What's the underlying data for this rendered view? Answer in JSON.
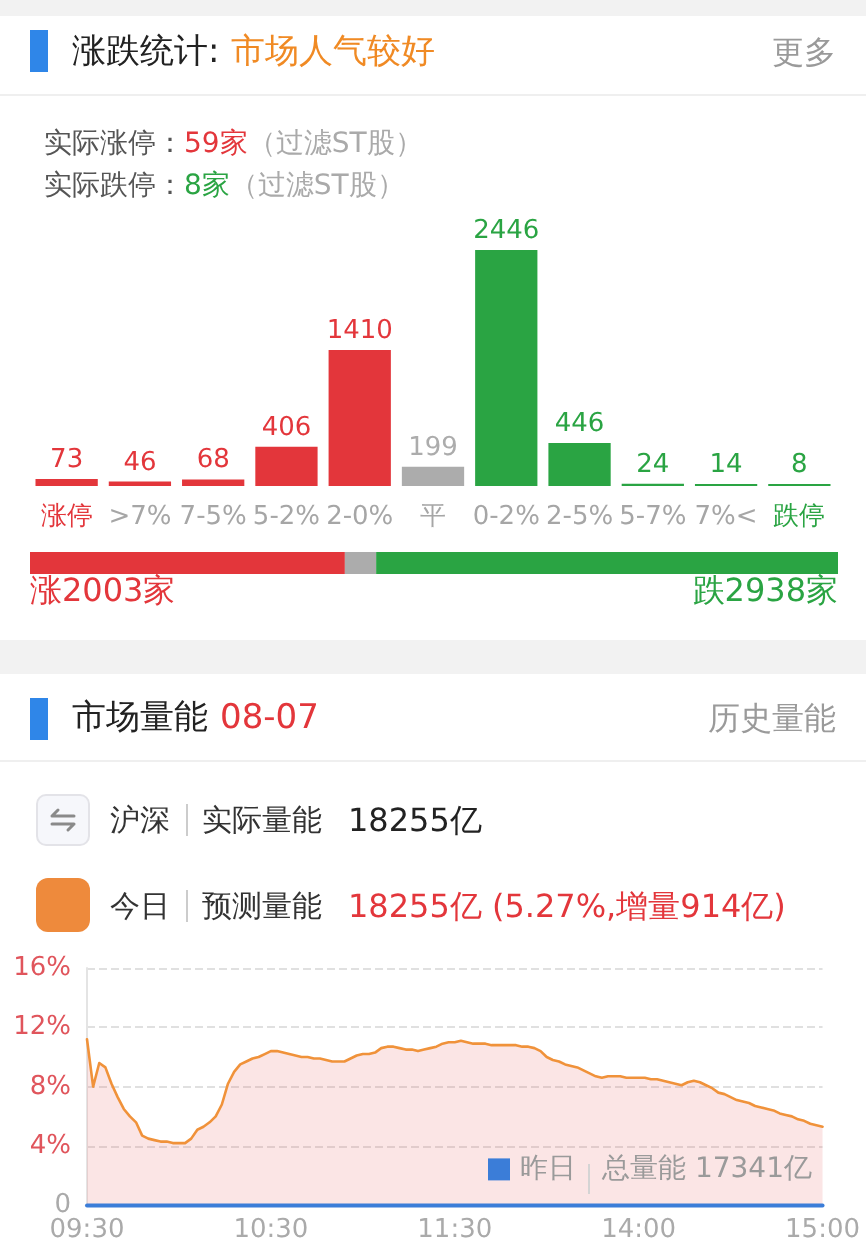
{
  "chart_data": [
    {
      "type": "bar",
      "title": "涨跌统计:",
      "subtitle": "市场人气较好",
      "annotations": [
        "更多",
        "实际涨停：",
        "59家",
        "（过滤ST股）",
        "实际跌停：",
        "8家",
        "（过滤ST股）"
      ],
      "categories": [
        "涨停",
        ">7%",
        "7-5%",
        "5-2%",
        "2-0%",
        "平",
        "0-2%",
        "2-5%",
        "5-7%",
        "7%<",
        "跌停"
      ],
      "values": [
        73,
        46,
        68,
        406,
        1410,
        199,
        2446,
        446,
        24,
        14,
        8
      ],
      "colors": [
        "#e3363b",
        "#e3363b",
        "#e3363b",
        "#e3363b",
        "#e3363b",
        "#acacac",
        "#2aa443",
        "#2aa443",
        "#2aa443",
        "#2aa443",
        "#2aa443"
      ],
      "data_labels": true
    },
    {
      "type": "bar",
      "orientation": "horizontal",
      "stacked": true,
      "categories": [
        null
      ],
      "series": [
        {
          "color": "#e3363b",
          "values": [
            2003
          ],
          "value_labels": [
            "涨2003家"
          ]
        },
        {
          "color": "#acacac",
          "values": [
            199
          ]
        },
        {
          "color": "#2aa443",
          "values": [
            2938
          ],
          "value_labels": [
            "跌2938家"
          ]
        }
      ]
    },
    {
      "type": "other",
      "title": "市场量能",
      "subtitle": "08-07",
      "annotations": [
        "历史量能",
        "沪深",
        "实际量能",
        "18255亿",
        "今日",
        "预测量能",
        "18255亿 (5.27%,增量914亿)"
      ]
    },
    {
      "type": "area",
      "categories": [
        "09:30",
        null,
        null,
        null,
        null,
        null,
        null,
        null,
        null,
        null,
        null,
        null,
        null,
        null,
        null,
        null,
        null,
        null,
        null,
        null,
        null,
        null,
        null,
        null,
        null,
        null,
        null,
        null,
        null,
        null,
        "10:30",
        null,
        null,
        null,
        null,
        null,
        null,
        null,
        null,
        null,
        null,
        null,
        null,
        null,
        null,
        null,
        null,
        null,
        null,
        null,
        null,
        null,
        null,
        null,
        null,
        null,
        null,
        null,
        null,
        null,
        "11:30",
        null,
        null,
        null,
        null,
        null,
        null,
        null,
        null,
        null,
        null,
        null,
        null,
        null,
        null,
        null,
        null,
        null,
        null,
        null,
        null,
        null,
        null,
        null,
        null,
        null,
        null,
        null,
        null,
        null,
        "14:00",
        null,
        null,
        null,
        null,
        null,
        null,
        null,
        null,
        null,
        null,
        null,
        null,
        null,
        null,
        null,
        null,
        null,
        null,
        null,
        null,
        null,
        null,
        null,
        null,
        null,
        null,
        null,
        null,
        null,
        "15:00"
      ],
      "ylim": [
        0,
        16
      ],
      "yticks": [
        0,
        {
          "value": 4,
          "label": "4%"
        },
        {
          "value": 8,
          "label": "8%"
        },
        {
          "value": 12,
          "label": "12%"
        },
        {
          "value": 16,
          "label": "16%"
        }
      ],
      "grid": "y",
      "legend": "bottom right",
      "annotations": [
        "总量能 17341亿"
      ],
      "series": [
        {
          "color": "#f0923a",
          "values": [
            11.2,
            8.0,
            9.6,
            9.3,
            8.2,
            7.3,
            6.5,
            6.0,
            5.6,
            4.7,
            4.5,
            4.4,
            4.3,
            4.3,
            4.2,
            4.2,
            4.2,
            4.5,
            5.1,
            5.3,
            5.6,
            6.0,
            6.8,
            8.2,
            9.0,
            9.5,
            9.7,
            9.9,
            10.0,
            10.2,
            10.4,
            10.4,
            10.3,
            10.2,
            10.1,
            10.0,
            10.0,
            9.9,
            9.9,
            9.8,
            9.7,
            9.7,
            9.7,
            9.9,
            10.1,
            10.2,
            10.2,
            10.3,
            10.6,
            10.7,
            10.7,
            10.6,
            10.5,
            10.5,
            10.4,
            10.5,
            10.6,
            10.7,
            10.9,
            11.0,
            11.0,
            11.1,
            11.0,
            10.9,
            10.9,
            10.9,
            10.8,
            10.8,
            10.8,
            10.8,
            10.8,
            10.7,
            10.7,
            10.6,
            10.4,
            10.0,
            9.8,
            9.7,
            9.5,
            9.4,
            9.3,
            9.1,
            8.9,
            8.7,
            8.6,
            8.7,
            8.7,
            8.7,
            8.6,
            8.6,
            8.6,
            8.6,
            8.5,
            8.5,
            8.4,
            8.3,
            8.2,
            8.1,
            8.3,
            8.4,
            8.3,
            8.1,
            7.9,
            7.6,
            7.5,
            7.3,
            7.1,
            7.0,
            6.9,
            6.7,
            6.6,
            6.5,
            6.4,
            6.2,
            6.1,
            6.0,
            5.8,
            5.7,
            5.5,
            5.4,
            5.3
          ]
        },
        {
          "name": "昨日",
          "type": "line",
          "color": "#3b7dd8",
          "values": [
            0,
            0,
            0,
            0,
            0,
            0,
            0,
            0,
            0,
            0,
            0,
            0,
            0,
            0,
            0,
            0,
            0,
            0,
            0,
            0,
            0,
            0,
            0,
            0,
            0,
            0,
            0,
            0,
            0,
            0,
            0,
            0,
            0,
            0,
            0,
            0,
            0,
            0,
            0,
            0,
            0,
            0,
            0,
            0,
            0,
            0,
            0,
            0,
            0,
            0,
            0,
            0,
            0,
            0,
            0,
            0,
            0,
            0,
            0,
            0,
            0,
            0,
            0,
            0,
            0,
            0,
            0,
            0,
            0,
            0,
            0,
            0,
            0,
            0,
            0,
            0,
            0,
            0,
            0,
            0,
            0,
            0,
            0,
            0,
            0,
            0,
            0,
            0,
            0,
            0,
            0,
            0,
            0,
            0,
            0,
            0,
            0,
            0,
            0,
            0,
            0,
            0,
            0,
            0,
            0,
            0,
            0,
            0,
            0,
            0,
            0,
            0,
            0,
            0,
            0,
            0,
            0,
            0,
            0,
            0,
            0
          ]
        }
      ]
    }
  ]
}
